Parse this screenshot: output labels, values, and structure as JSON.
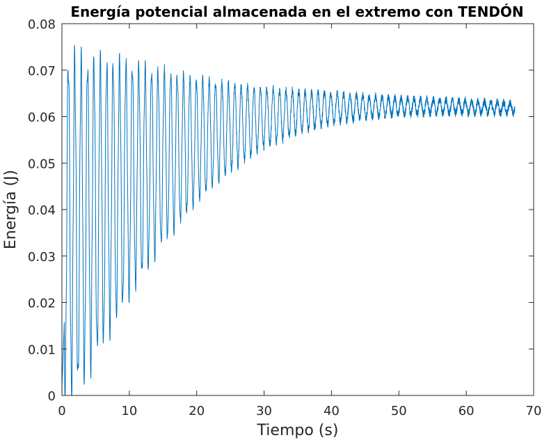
{
  "chart_data": {
    "type": "line",
    "title": "Energía potencial almacenada en el extremo con TENDÓN",
    "xlabel": "Tiempo (s)",
    "ylabel": "Energía (J)",
    "xlim": [
      0,
      70
    ],
    "ylim": [
      0,
      0.08
    ],
    "xticks": [
      0,
      10,
      20,
      30,
      40,
      50,
      60,
      70
    ],
    "yticks": [
      0,
      0.01,
      0.02,
      0.03,
      0.04,
      0.05,
      0.06,
      0.07,
      0.08
    ],
    "xtick_labels": [
      "0",
      "10",
      "20",
      "30",
      "40",
      "50",
      "60",
      "70"
    ],
    "ytick_labels": [
      "0",
      "0.01",
      "0.02",
      "0.03",
      "0.04",
      "0.05",
      "0.06",
      "0.07",
      "0.08"
    ],
    "grid": false,
    "legend": "none",
    "series_color": "#0072BD",
    "series": [
      {
        "x_range": [
          0,
          67.2
        ],
        "oscillation_period_s": 0.95,
        "equilibrium_J": 0.0615,
        "maxima_envelope": [
          [
            0.5,
            0.072
          ],
          [
            10,
            0.071
          ],
          [
            20,
            0.068
          ],
          [
            30,
            0.066
          ],
          [
            40,
            0.065
          ],
          [
            50,
            0.064
          ],
          [
            60,
            0.0635
          ],
          [
            67,
            0.063
          ]
        ],
        "minima_envelope": [
          [
            1.8,
            0.0015
          ],
          [
            3.7,
            0.0055
          ],
          [
            5.5,
            0.0105
          ],
          [
            10,
            0.022
          ],
          [
            15,
            0.033
          ],
          [
            20,
            0.042
          ],
          [
            25,
            0.0485
          ],
          [
            30,
            0.0535
          ],
          [
            35,
            0.0565
          ],
          [
            40,
            0.0585
          ],
          [
            45,
            0.0597
          ],
          [
            50,
            0.0604
          ],
          [
            55,
            0.0606
          ],
          [
            60,
            0.0607
          ],
          [
            67,
            0.0607
          ]
        ]
      }
    ]
  }
}
